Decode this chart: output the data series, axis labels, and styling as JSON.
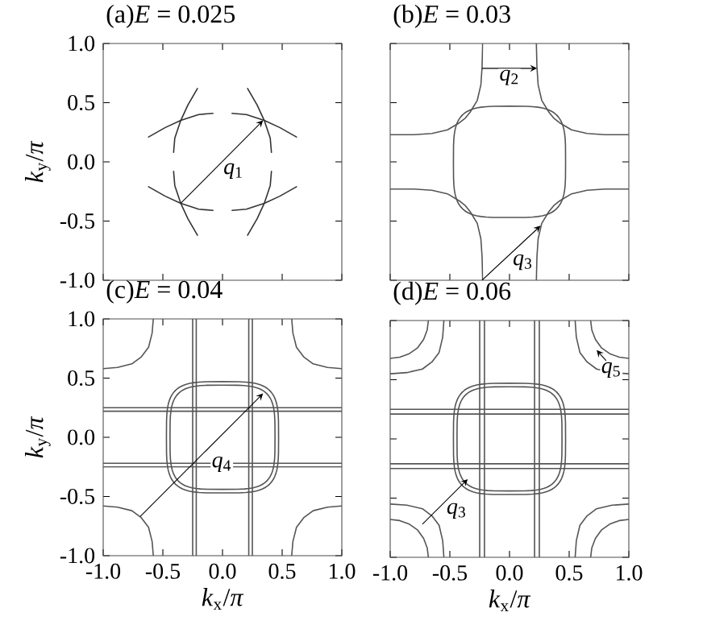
{
  "chart_data": [
    {
      "type": "line",
      "title": "(a)*E* = 0.025",
      "ylabel": "*k*$_{y}$/*π*",
      "xlim": [
        -1,
        1
      ],
      "ylim": [
        -1,
        1
      ],
      "tick_labels": "y",
      "xticks": [
        {
          "value": -1,
          "label": null
        },
        {
          "value": -0.5,
          "label": null
        },
        {
          "value": 0,
          "label": null
        },
        {
          "value": 0.5,
          "label": null
        },
        {
          "value": 1,
          "label": null
        }
      ],
      "yticks": [
        {
          "value": -1,
          "label": "-1.0"
        },
        {
          "value": -0.5,
          "label": "-0.5"
        },
        {
          "value": 0,
          "label": "0.0"
        },
        {
          "value": 0.5,
          "label": "0.5"
        },
        {
          "value": 1,
          "label": "1.0"
        }
      ],
      "annotations": [
        "*q*$_{1}$"
      ],
      "series": [
        {
          "color": "#333333",
          "x": [
            0.08,
            0.2,
            0.35,
            0.48,
            0.62
          ],
          "values": [
            0.41,
            0.4,
            0.35,
            0.29,
            0.21
          ]
        },
        {
          "color": "#333333",
          "x": [
            0.21,
            0.29,
            0.35,
            0.4,
            0.41
          ],
          "values": [
            0.62,
            0.48,
            0.35,
            0.2,
            0.08
          ]
        },
        {
          "color": "#333333",
          "x": [
            -0.62,
            -0.48,
            -0.35,
            -0.2,
            -0.08
          ],
          "values": [
            0.21,
            0.29,
            0.35,
            0.4,
            0.41
          ]
        },
        {
          "color": "#333333",
          "x": [
            -0.41,
            -0.4,
            -0.35,
            -0.29,
            -0.21
          ],
          "values": [
            0.08,
            0.2,
            0.35,
            0.48,
            0.62
          ]
        },
        {
          "color": "#333333",
          "x": [
            -0.62,
            -0.48,
            -0.35,
            -0.2,
            -0.08
          ],
          "values": [
            -0.21,
            -0.29,
            -0.35,
            -0.4,
            -0.41
          ]
        },
        {
          "color": "#333333",
          "x": [
            -0.41,
            -0.4,
            -0.35,
            -0.29,
            -0.21
          ],
          "values": [
            -0.08,
            -0.2,
            -0.35,
            -0.48,
            -0.62
          ]
        },
        {
          "color": "#333333",
          "x": [
            0.08,
            0.2,
            0.35,
            0.48,
            0.62
          ],
          "values": [
            -0.41,
            -0.4,
            -0.35,
            -0.29,
            -0.21
          ]
        },
        {
          "color": "#333333",
          "x": [
            0.21,
            0.29,
            0.35,
            0.4,
            0.41
          ],
          "values": [
            -0.62,
            -0.48,
            -0.35,
            -0.2,
            -0.08
          ]
        }
      ]
    },
    {
      "type": "line",
      "title": "(b)*E* = 0.03",
      "xlim": [
        -1,
        1
      ],
      "ylim": [
        -1,
        1
      ],
      "tick_labels": false,
      "xticks": [
        {
          "value": -1,
          "label": null
        },
        {
          "value": -0.5,
          "label": null
        },
        {
          "value": 0,
          "label": null
        },
        {
          "value": 0.5,
          "label": null
        },
        {
          "value": 1,
          "label": null
        }
      ],
      "yticks": [
        {
          "value": -1,
          "label": null
        },
        {
          "value": -0.5,
          "label": null
        },
        {
          "value": 0,
          "label": null
        },
        {
          "value": 0.5,
          "label": null
        },
        {
          "value": 1,
          "label": null
        }
      ],
      "annotations": [
        "*q*$_{2}$",
        "*q*$_{3}$"
      ],
      "series": [
        {
          "color": "#555555",
          "x": [
            0.225,
            0.23,
            0.24,
            0.27,
            0.33,
            0.37,
            0.42,
            0.52,
            0.65,
            0.8,
            1.0
          ],
          "values": [
            1.0,
            0.8,
            0.65,
            0.52,
            0.42,
            0.37,
            0.33,
            0.27,
            0.24,
            0.23,
            0.23
          ]
        },
        {
          "color": "#555555",
          "x": [
            -1.0,
            -0.8,
            -0.65,
            -0.52,
            -0.42,
            -0.37,
            -0.33,
            -0.27,
            -0.24,
            -0.23,
            -0.225
          ],
          "values": [
            0.23,
            0.23,
            0.24,
            0.27,
            0.33,
            0.37,
            0.42,
            0.52,
            0.65,
            0.8,
            1.0
          ]
        },
        {
          "color": "#555555",
          "x": [
            -1.0,
            -0.8,
            -0.65,
            -0.52,
            -0.42,
            -0.37,
            -0.33,
            -0.27,
            -0.24,
            -0.23,
            -0.225
          ],
          "values": [
            -0.23,
            -0.23,
            -0.24,
            -0.27,
            -0.33,
            -0.37,
            -0.42,
            -0.52,
            -0.65,
            -0.8,
            -1.0
          ]
        },
        {
          "color": "#555555",
          "x": [
            0.225,
            0.23,
            0.24,
            0.27,
            0.33,
            0.37,
            0.42,
            0.52,
            0.65,
            0.8,
            1.0
          ],
          "values": [
            -1.0,
            -0.8,
            -0.65,
            -0.52,
            -0.42,
            -0.37,
            -0.33,
            -0.27,
            -0.24,
            -0.23,
            -0.23
          ]
        }
      ]
    },
    {
      "type": "line",
      "title": "(c)*E* = 0.04",
      "xlabel": "*k*$_{x}$/*π*",
      "ylabel": "*k*$_{y}$/*π*",
      "xlim": [
        -1,
        1
      ],
      "ylim": [
        -1,
        1
      ],
      "xticks": [
        {
          "value": -1,
          "label": "-1.0"
        },
        {
          "value": -0.5,
          "label": "-0.5"
        },
        {
          "value": 0,
          "label": "0.0"
        },
        {
          "value": 0.5,
          "label": "0.5"
        },
        {
          "value": 1,
          "label": "1.0"
        }
      ],
      "yticks": [
        {
          "value": -1,
          "label": "-1.0"
        },
        {
          "value": -0.5,
          "label": "-0.5"
        },
        {
          "value": 0,
          "label": "0.0"
        },
        {
          "value": 0.5,
          "label": "0.5"
        },
        {
          "value": 1,
          "label": "1.0"
        }
      ],
      "annotations": [
        "*q*$_{4}$"
      ],
      "series": [
        {
          "color": "#555555",
          "x": [
            -0.25,
            -0.25
          ],
          "values": [
            -1,
            1
          ]
        },
        {
          "color": "#555555",
          "x": [
            -0.22,
            -0.22
          ],
          "values": [
            -1,
            1
          ]
        },
        {
          "color": "#555555",
          "x": [
            0.22,
            0.22
          ],
          "values": [
            -1,
            1
          ]
        },
        {
          "color": "#555555",
          "x": [
            0.25,
            0.25
          ],
          "values": [
            -1,
            1
          ]
        },
        {
          "color": "#555555",
          "x": [
            -1,
            1
          ],
          "values": [
            0.25,
            0.25
          ]
        },
        {
          "color": "#555555",
          "x": [
            -1,
            1
          ],
          "values": [
            0.22,
            0.22
          ]
        },
        {
          "color": "#555555",
          "x": [
            -1,
            1
          ],
          "values": [
            -0.22,
            -0.22
          ]
        },
        {
          "color": "#555555",
          "x": [
            -1,
            1
          ],
          "values": [
            -0.25,
            -0.25
          ]
        },
        {
          "color": "#555555",
          "x": [
            -1.0,
            -0.88,
            -0.76,
            -0.68,
            -0.62,
            -0.59,
            -0.58
          ],
          "values": [
            0.58,
            0.59,
            0.62,
            0.68,
            0.76,
            0.88,
            1.0
          ]
        },
        {
          "color": "#555555",
          "x": [
            0.58,
            0.59,
            0.62,
            0.68,
            0.76,
            0.88,
            1.0
          ],
          "values": [
            1.0,
            0.88,
            0.76,
            0.68,
            0.62,
            0.59,
            0.58
          ]
        },
        {
          "color": "#555555",
          "x": [
            -1.0,
            -0.88,
            -0.76,
            -0.68,
            -0.62,
            -0.59,
            -0.58
          ],
          "values": [
            -0.58,
            -0.59,
            -0.62,
            -0.68,
            -0.76,
            -0.88,
            -1.0
          ]
        },
        {
          "color": "#555555",
          "x": [
            0.58,
            0.59,
            0.62,
            0.68,
            0.76,
            0.88,
            1.0
          ],
          "values": [
            -1.0,
            -0.88,
            -0.76,
            -0.68,
            -0.62,
            -0.59,
            -0.58
          ]
        }
      ]
    },
    {
      "type": "line",
      "title": "(d)*E* = 0.06",
      "xlabel": "*k*$_{x}$/*π*",
      "xlim": [
        -1,
        1
      ],
      "ylim": [
        -1,
        1
      ],
      "tick_labels": "x",
      "xticks": [
        {
          "value": -1,
          "label": "-1.0"
        },
        {
          "value": -0.5,
          "label": "-0.5"
        },
        {
          "value": 0,
          "label": "0.0"
        },
        {
          "value": 0.5,
          "label": "0.5"
        },
        {
          "value": 1,
          "label": "1.0"
        }
      ],
      "yticks": [
        {
          "value": -1,
          "label": null
        },
        {
          "value": -0.5,
          "label": null
        },
        {
          "value": 0,
          "label": null
        },
        {
          "value": 0.5,
          "label": null
        },
        {
          "value": 1,
          "label": null
        }
      ],
      "annotations": [
        "*q*$_{3}$",
        "*q*$_{5}$"
      ],
      "series": [
        {
          "color": "#555555",
          "x": [
            -0.25,
            -0.25
          ],
          "values": [
            -1,
            1
          ]
        },
        {
          "color": "#555555",
          "x": [
            -0.21,
            -0.21
          ],
          "values": [
            -1,
            1
          ]
        },
        {
          "color": "#555555",
          "x": [
            0.21,
            0.21
          ],
          "values": [
            -1,
            1
          ]
        },
        {
          "color": "#555555",
          "x": [
            0.25,
            0.25
          ],
          "values": [
            -1,
            1
          ]
        },
        {
          "color": "#555555",
          "x": [
            -1,
            1
          ],
          "values": [
            0.25,
            0.25
          ]
        },
        {
          "color": "#555555",
          "x": [
            -1,
            1
          ],
          "values": [
            0.21,
            0.21
          ]
        },
        {
          "color": "#555555",
          "x": [
            -1,
            1
          ],
          "values": [
            -0.21,
            -0.21
          ]
        },
        {
          "color": "#555555",
          "x": [
            -1,
            1
          ],
          "values": [
            -0.25,
            -0.25
          ]
        },
        {
          "color": "#555555",
          "x": [
            -1.0,
            -0.86,
            -0.73,
            -0.65,
            -0.59,
            -0.56,
            -0.55
          ],
          "values": [
            0.55,
            0.56,
            0.59,
            0.65,
            0.73,
            0.86,
            1.0
          ]
        },
        {
          "color": "#555555",
          "x": [
            0.55,
            0.56,
            0.59,
            0.65,
            0.73,
            0.86,
            1.0
          ],
          "values": [
            1.0,
            0.86,
            0.73,
            0.65,
            0.59,
            0.56,
            0.55
          ]
        },
        {
          "color": "#555555",
          "x": [
            -1.0,
            -0.86,
            -0.73,
            -0.65,
            -0.59,
            -0.56,
            -0.55
          ],
          "values": [
            -0.55,
            -0.56,
            -0.59,
            -0.65,
            -0.73,
            -0.86,
            -1.0
          ]
        },
        {
          "color": "#555555",
          "x": [
            0.55,
            0.56,
            0.59,
            0.65,
            0.73,
            0.86,
            1.0
          ],
          "values": [
            -1.0,
            -0.86,
            -0.73,
            -0.65,
            -0.59,
            -0.56,
            -0.55
          ]
        },
        {
          "color": "#555555",
          "x": [
            -1.0,
            -0.92,
            -0.84,
            -0.77,
            -0.72,
            -0.69,
            -0.68
          ],
          "values": [
            0.68,
            0.69,
            0.72,
            0.77,
            0.84,
            0.92,
            1.0
          ]
        },
        {
          "color": "#555555",
          "x": [
            0.68,
            0.69,
            0.72,
            0.77,
            0.84,
            0.92,
            1.0
          ],
          "values": [
            1.0,
            0.92,
            0.84,
            0.77,
            0.72,
            0.69,
            0.68
          ]
        },
        {
          "color": "#555555",
          "x": [
            -1.0,
            -0.92,
            -0.84,
            -0.77,
            -0.72,
            -0.69,
            -0.68
          ],
          "values": [
            -0.68,
            -0.69,
            -0.72,
            -0.77,
            -0.84,
            -0.92,
            -1.0
          ]
        },
        {
          "color": "#555555",
          "x": [
            0.68,
            0.69,
            0.72,
            0.77,
            0.84,
            0.92,
            1.0
          ],
          "values": [
            -1.0,
            -0.92,
            -0.84,
            -0.77,
            -0.72,
            -0.69,
            -0.68
          ]
        }
      ]
    }
  ]
}
